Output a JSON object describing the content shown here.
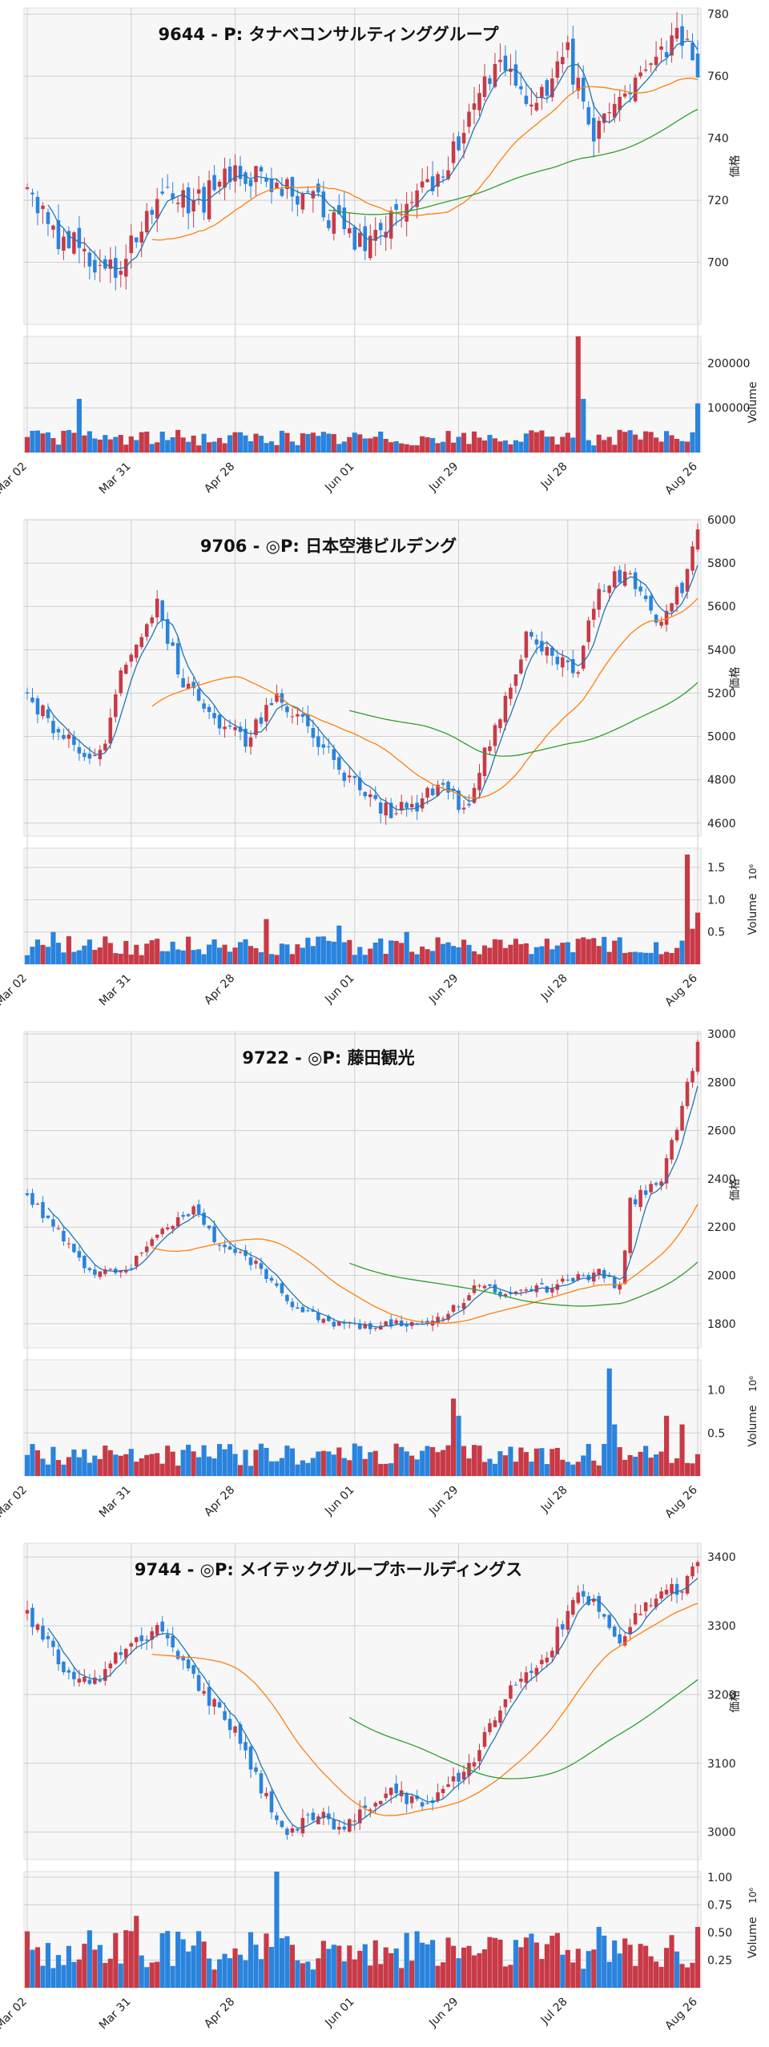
{
  "labels": {
    "price_axis": "価格",
    "volume_axis": "Volume",
    "volume_exponent": "10⁶"
  },
  "colors": {
    "up": "#c83a47",
    "down": "#2a83dd",
    "ma_short": "#1f77b4",
    "ma_mid": "#ff7f0e",
    "ma_long": "#2ca02c",
    "grid": "#cfcfcf",
    "background": "#f7f7f7"
  },
  "chart_data": [
    {
      "type": "candlestick",
      "title": "9644 - P: タナベコンサルティンググループ",
      "x_ticks": [
        "Mar 02",
        "Mar 31",
        "Apr 28",
        "Jun 01",
        "Jun 29",
        "Jul 28",
        "Aug 26"
      ],
      "price": {
        "ylim": [
          680,
          782
        ],
        "ticks": [
          700,
          720,
          740,
          760,
          780
        ],
        "tick_labels": [
          "700",
          "720",
          "740",
          "760",
          "780"
        ]
      },
      "volume": {
        "ylim": [
          0,
          260000
        ],
        "ticks": [
          100000,
          200000
        ],
        "tick_labels": [
          "100000",
          "200000"
        ]
      },
      "anchors": [
        [
          0,
          725
        ],
        [
          5,
          710
        ],
        [
          12,
          702
        ],
        [
          17,
          698
        ],
        [
          25,
          720
        ],
        [
          32,
          718
        ],
        [
          40,
          728
        ],
        [
          46,
          727
        ],
        [
          54,
          722
        ],
        [
          60,
          712
        ],
        [
          65,
          705
        ],
        [
          70,
          715
        ],
        [
          76,
          722
        ],
        [
          82,
          735
        ],
        [
          90,
          762
        ],
        [
          96,
          755
        ],
        [
          100,
          752
        ],
        [
          104,
          768
        ],
        [
          108,
          742
        ],
        [
          113,
          748
        ],
        [
          118,
          765
        ],
        [
          124,
          772
        ],
        [
          128,
          768
        ],
        [
          129,
          762
        ]
      ],
      "vol_base": 35000,
      "vol_spikes": [
        [
          10,
          120000
        ],
        [
          106,
          260000
        ],
        [
          107,
          120000
        ],
        [
          129,
          110000
        ]
      ],
      "ma_short_n": 5,
      "ma_mid_n": 25,
      "ma_long_n": 75,
      "ma_long_from": 58,
      "volatility": 6
    },
    {
      "type": "candlestick",
      "title": "9706 - ◎P: 日本空港ビルデング",
      "x_ticks": [
        "Mar 02",
        "Mar 31",
        "Apr 28",
        "Jun 01",
        "Jun 29",
        "Jul 28",
        "Aug 26"
      ],
      "price": {
        "ylim": [
          4540,
          6000
        ],
        "ticks": [
          4600,
          4800,
          5000,
          5200,
          5400,
          5600,
          5800,
          6000
        ],
        "tick_labels": [
          "4600",
          "4800",
          "5000",
          "5200",
          "5400",
          "5600",
          "5800",
          "6000"
        ]
      },
      "volume": {
        "ylim": [
          0,
          1800000
        ],
        "ticks": [
          500000,
          1000000,
          1500000
        ],
        "tick_labels": [
          "0.5",
          "1.0",
          "1.5"
        ]
      },
      "anchors": [
        [
          0,
          5200
        ],
        [
          5,
          5050
        ],
        [
          10,
          4920
        ],
        [
          14,
          4900
        ],
        [
          18,
          5300
        ],
        [
          25,
          5600
        ],
        [
          30,
          5250
        ],
        [
          38,
          5050
        ],
        [
          42,
          4990
        ],
        [
          48,
          5180
        ],
        [
          56,
          4980
        ],
        [
          62,
          4800
        ],
        [
          68,
          4650
        ],
        [
          76,
          4700
        ],
        [
          80,
          4790
        ],
        [
          84,
          4650
        ],
        [
          90,
          5050
        ],
        [
          96,
          5450
        ],
        [
          102,
          5350
        ],
        [
          106,
          5300
        ],
        [
          110,
          5700
        ],
        [
          116,
          5750
        ],
        [
          122,
          5500
        ],
        [
          126,
          5700
        ],
        [
          129,
          5950
        ]
      ],
      "vol_base": 300000,
      "vol_spikes": [
        [
          5,
          500000
        ],
        [
          46,
          700000
        ],
        [
          60,
          600000
        ],
        [
          73,
          500000
        ],
        [
          127,
          1700000
        ],
        [
          128,
          550000
        ],
        [
          129,
          800000
        ]
      ],
      "ma_short_n": 5,
      "ma_mid_n": 25,
      "ma_long_n": 75,
      "ma_long_from": 62,
      "volatility": 50
    },
    {
      "type": "candlestick",
      "title": "9722 - ◎P: 藤田観光",
      "x_ticks": [
        "Mar 02",
        "Mar 31",
        "Apr 28",
        "Jun 01",
        "Jun 29",
        "Jul 28",
        "Aug 26"
      ],
      "price": {
        "ylim": [
          1700,
          3010
        ],
        "ticks": [
          1800,
          2000,
          2200,
          2400,
          2600,
          2800,
          3000
        ],
        "tick_labels": [
          "1800",
          "2000",
          "2200",
          "2400",
          "2600",
          "2800",
          "3000"
        ]
      },
      "volume": {
        "ylim": [
          0,
          1350000
        ],
        "ticks": [
          500000,
          1000000
        ],
        "tick_labels": [
          "0.5",
          "1.0"
        ]
      },
      "anchors": [
        [
          0,
          2330
        ],
        [
          6,
          2180
        ],
        [
          12,
          2020
        ],
        [
          18,
          2000
        ],
        [
          26,
          2200
        ],
        [
          32,
          2270
        ],
        [
          38,
          2100
        ],
        [
          44,
          2050
        ],
        [
          50,
          1880
        ],
        [
          58,
          1800
        ],
        [
          64,
          1790
        ],
        [
          72,
          1800
        ],
        [
          80,
          1820
        ],
        [
          86,
          1950
        ],
        [
          94,
          1920
        ],
        [
          102,
          1960
        ],
        [
          110,
          2010
        ],
        [
          114,
          1950
        ],
        [
          116,
          2300
        ],
        [
          122,
          2400
        ],
        [
          126,
          2700
        ],
        [
          129,
          2950
        ]
      ],
      "vol_base": 260000,
      "vol_spikes": [
        [
          82,
          900000
        ],
        [
          83,
          700000
        ],
        [
          112,
          1250000
        ],
        [
          113,
          600000
        ],
        [
          123,
          700000
        ],
        [
          126,
          600000
        ]
      ],
      "ma_short_n": 5,
      "ma_mid_n": 25,
      "ma_long_n": 75,
      "ma_long_from": 62,
      "volatility": 28
    },
    {
      "type": "candlestick",
      "title": "9744 - ◎P: メイテックグループホールディングス",
      "x_ticks": [
        "Mar 02",
        "Mar 31",
        "Apr 28",
        "Jun 01",
        "Jun 29",
        "Jul 28",
        "Aug 26"
      ],
      "price": {
        "ylim": [
          2960,
          3420
        ],
        "ticks": [
          3000,
          3100,
          3200,
          3300,
          3400
        ],
        "tick_labels": [
          "3000",
          "3100",
          "3200",
          "3300",
          "3400"
        ]
      },
      "volume": {
        "ylim": [
          0,
          1050000
        ],
        "ticks": [
          250000,
          500000,
          750000,
          1000000
        ],
        "tick_labels": [
          "0.25",
          "0.50",
          "0.75",
          "1.00"
        ]
      },
      "anchors": [
        [
          0,
          3320
        ],
        [
          6,
          3250
        ],
        [
          12,
          3210
        ],
        [
          18,
          3260
        ],
        [
          26,
          3300
        ],
        [
          32,
          3220
        ],
        [
          40,
          3150
        ],
        [
          46,
          3050
        ],
        [
          50,
          3000
        ],
        [
          56,
          3020
        ],
        [
          62,
          3010
        ],
        [
          70,
          3060
        ],
        [
          78,
          3040
        ],
        [
          86,
          3110
        ],
        [
          92,
          3200
        ],
        [
          100,
          3260
        ],
        [
          106,
          3350
        ],
        [
          110,
          3320
        ],
        [
          114,
          3280
        ],
        [
          120,
          3340
        ],
        [
          126,
          3360
        ],
        [
          129,
          3400
        ]
      ],
      "vol_base": 360000,
      "vol_spikes": [
        [
          21,
          650000
        ],
        [
          48,
          1050000
        ],
        [
          110,
          550000
        ],
        [
          129,
          550000
        ]
      ],
      "ma_short_n": 5,
      "ma_mid_n": 25,
      "ma_long_n": 75,
      "ma_long_from": 62,
      "volatility": 15
    }
  ]
}
